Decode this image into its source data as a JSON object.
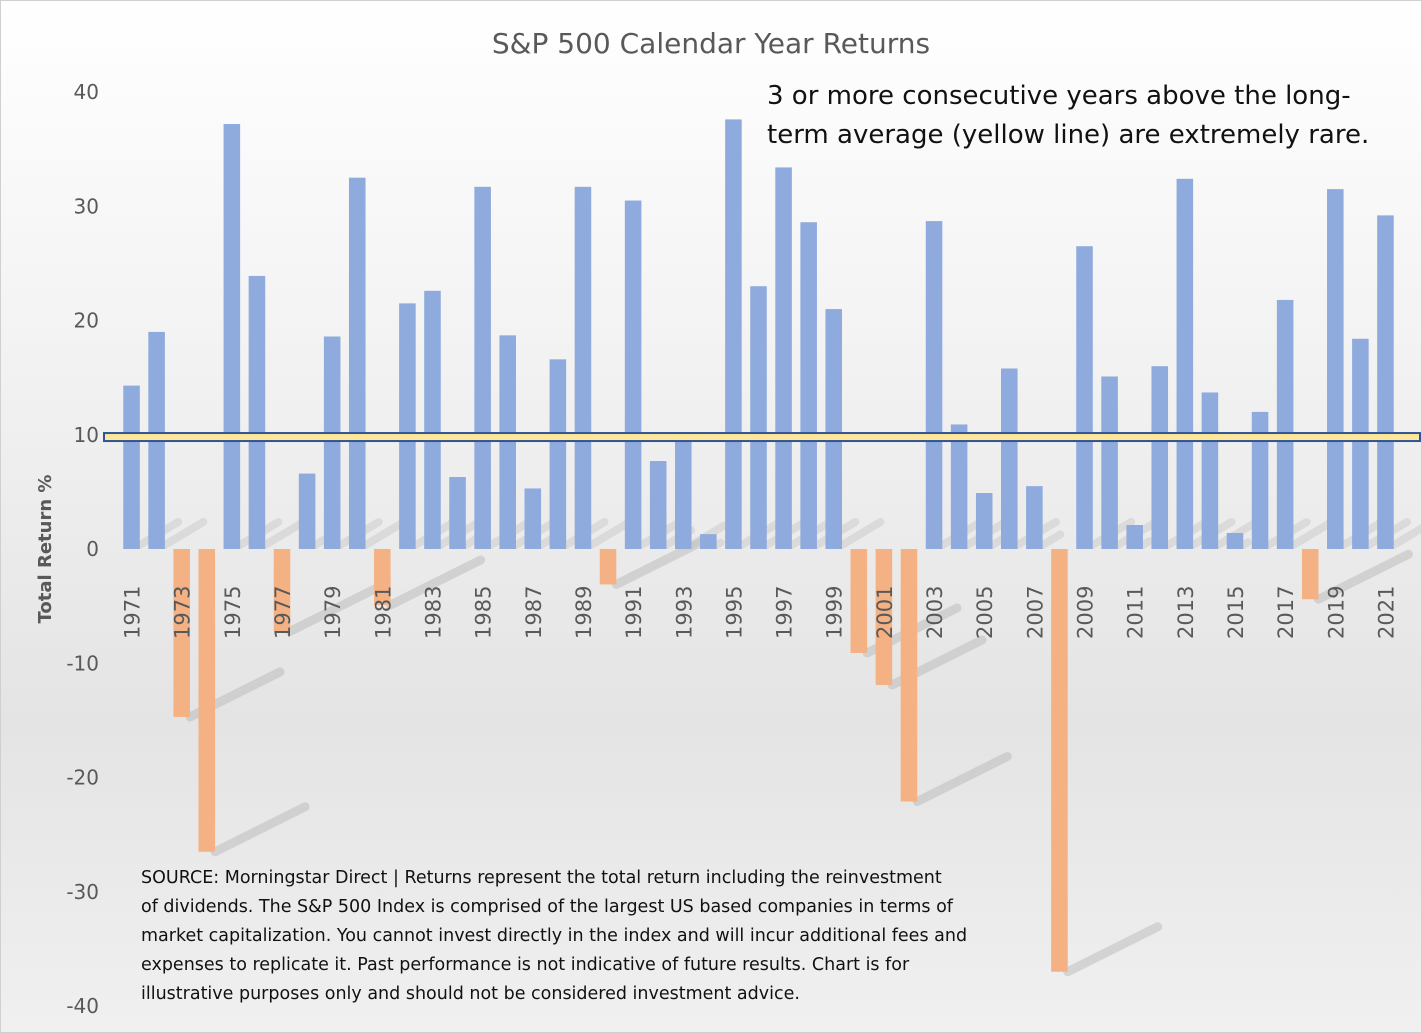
{
  "chart_data": {
    "type": "bar",
    "title": "S&P 500 Calendar Year Returns",
    "xlabel": "",
    "ylabel": "Total Return %",
    "ylim": [
      -40,
      40
    ],
    "yticks": [
      40,
      30,
      20,
      10,
      0,
      -10,
      -20,
      -30,
      -40
    ],
    "x_tick_labels": [
      "1971",
      "1973",
      "1975",
      "1977",
      "1979",
      "1981",
      "1983",
      "1985",
      "1987",
      "1989",
      "1991",
      "1993",
      "1995",
      "1997",
      "1999",
      "2001",
      "2003",
      "2005",
      "2007",
      "2009",
      "2011",
      "2013",
      "2015",
      "2017",
      "2019",
      "2021"
    ],
    "categories": [
      1971,
      1972,
      1973,
      1974,
      1975,
      1976,
      1977,
      1978,
      1979,
      1980,
      1981,
      1982,
      1983,
      1984,
      1985,
      1986,
      1987,
      1988,
      1989,
      1990,
      1991,
      1992,
      1993,
      1994,
      1995,
      1996,
      1997,
      1998,
      1999,
      2000,
      2001,
      2002,
      2003,
      2004,
      2005,
      2006,
      2007,
      2008,
      2009,
      2010,
      2011,
      2012,
      2013,
      2014,
      2015,
      2016,
      2017,
      2018,
      2019,
      2020,
      2021
    ],
    "values": [
      14.3,
      19.0,
      -14.7,
      -26.5,
      37.2,
      23.9,
      -7.2,
      6.6,
      18.6,
      32.5,
      -4.9,
      21.5,
      22.6,
      6.3,
      31.7,
      18.7,
      5.3,
      16.6,
      31.7,
      -3.1,
      30.5,
      7.7,
      10.0,
      1.3,
      37.6,
      23.0,
      33.4,
      28.6,
      21.0,
      -9.1,
      -11.9,
      -22.1,
      28.7,
      10.9,
      4.9,
      15.8,
      5.5,
      -37.0,
      26.5,
      15.1,
      2.1,
      16.0,
      32.4,
      13.7,
      1.4,
      12.0,
      21.8,
      -4.4,
      31.5,
      18.4,
      29.2
    ],
    "average_line": {
      "value": 9.8,
      "label": "long-term average"
    },
    "colors": {
      "positive": "#8faadc",
      "negative": "#f4b183",
      "average_line": "#ffe699",
      "average_line_border": "#2f5597",
      "text": "#595959"
    },
    "annotation": {
      "lines": [
        "3 or more consecutive years above the long-",
        "term average (yellow line) are extremely rare."
      ]
    },
    "source_note": {
      "lines": [
        "SOURCE: Morningstar Direct | Returns represent the total return including the reinvestment",
        "of dividends.  The S&P 500 Index is comprised of the largest US based companies in terms of",
        "market capitalization. You cannot invest directly in the index and will incur additional fees and",
        "expenses to replicate it. Past performance is not indicative of future results. Chart is for",
        "illustrative purposes only and should not be considered investment advice."
      ]
    }
  }
}
